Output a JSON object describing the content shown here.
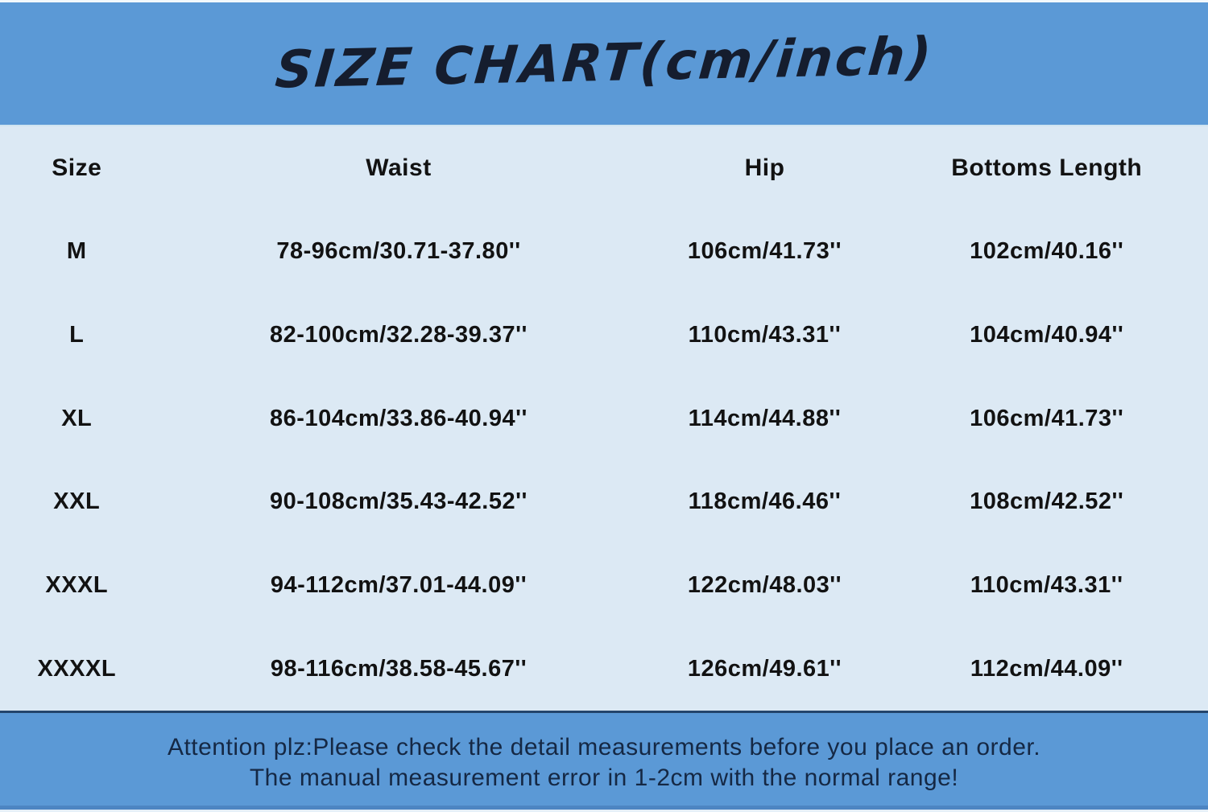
{
  "title": "SIZE CHART(cm/inch)",
  "colors": {
    "banner_blue": "#5b99d6",
    "body_light_blue": "#dce9f4",
    "text_dark": "#121212",
    "footer_border_navy": "#24456b",
    "bottom_strip_blue": "#4d85c2"
  },
  "table": {
    "columns": [
      "Size",
      "Waist",
      "Hip",
      "Bottoms Length"
    ],
    "rows": [
      {
        "size": "M",
        "waist": "78-96cm/30.71-37.80''",
        "hip": "106cm/41.73''",
        "bottoms_length": "102cm/40.16''"
      },
      {
        "size": "L",
        "waist": "82-100cm/32.28-39.37''",
        "hip": "110cm/43.31''",
        "bottoms_length": "104cm/40.94''"
      },
      {
        "size": "XL",
        "waist": "86-104cm/33.86-40.94''",
        "hip": "114cm/44.88''",
        "bottoms_length": "106cm/41.73''"
      },
      {
        "size": "XXL",
        "waist": "90-108cm/35.43-42.52''",
        "hip": "118cm/46.46''",
        "bottoms_length": "108cm/42.52''"
      },
      {
        "size": "XXXL",
        "waist": "94-112cm/37.01-44.09''",
        "hip": "122cm/48.03''",
        "bottoms_length": "110cm/43.31''"
      },
      {
        "size": "XXXXL",
        "waist": "98-116cm/38.58-45.67''",
        "hip": "126cm/49.61''",
        "bottoms_length": "112cm/44.09''"
      }
    ]
  },
  "footer": {
    "line1": "Attention plz:Please check the detail measurements before you place an order.",
    "line2": "The manual measurement error in 1-2cm with the normal range!"
  },
  "chart_data": {
    "type": "table",
    "title": "SIZE CHART(cm/inch)",
    "columns": [
      "Size",
      "Waist",
      "Hip",
      "Bottoms Length"
    ],
    "rows": [
      [
        "M",
        "78-96cm/30.71-37.80''",
        "106cm/41.73''",
        "102cm/40.16''"
      ],
      [
        "L",
        "82-100cm/32.28-39.37''",
        "110cm/43.31''",
        "104cm/40.94''"
      ],
      [
        "XL",
        "86-104cm/33.86-40.94''",
        "114cm/44.88''",
        "106cm/41.73''"
      ],
      [
        "XXL",
        "90-108cm/35.43-42.52''",
        "118cm/46.46''",
        "108cm/42.52''"
      ],
      [
        "XXXL",
        "94-112cm/37.01-44.09''",
        "122cm/48.03''",
        "110cm/43.31''"
      ],
      [
        "XXXXL",
        "98-116cm/38.58-45.67''",
        "126cm/49.61''",
        "112cm/44.09''"
      ]
    ],
    "notes": [
      "Attention plz:Please check the detail measurements before you place an order.",
      "The manual measurement error in 1-2cm with the normal range!"
    ]
  }
}
